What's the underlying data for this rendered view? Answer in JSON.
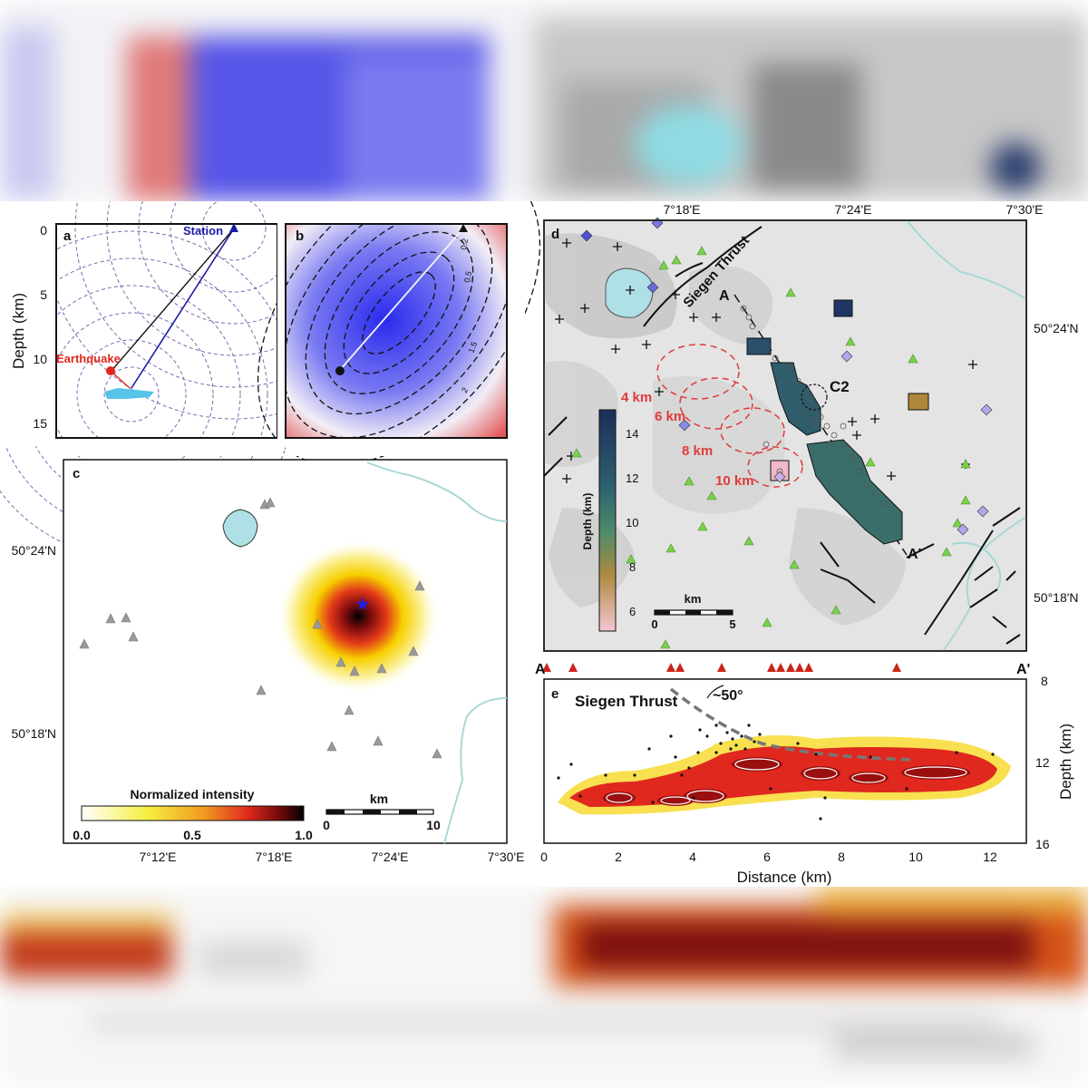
{
  "panels": {
    "a": {
      "letter": "a",
      "station_label": "Station",
      "earthquake_label": "Earthquake",
      "y_ticks": [
        "0",
        "5",
        "10",
        "15"
      ],
      "y_axis_title": "Depth (km)"
    },
    "b": {
      "letter": "b",
      "contour_labels": [
        "0.2",
        "0.5",
        "1.5",
        "2"
      ]
    },
    "c": {
      "letter": "c",
      "lat_ticks": [
        "50°24'N",
        "50°18'N"
      ],
      "lon_ticks": [
        "7°12'E",
        "7°18'E",
        "7°24'E",
        "7°30'E"
      ],
      "colorbar_title": "Normalized intensity",
      "colorbar_ticks": [
        "0.0",
        "0.5",
        "1.0"
      ],
      "scale_unit": "km",
      "scale_ticks": [
        "0",
        "10"
      ]
    },
    "d": {
      "letter": "d",
      "lon_ticks": [
        "7°18'E",
        "7°24'E",
        "7°30'E"
      ],
      "lat_ticks": [
        "50°24'N",
        "50°18'N"
      ],
      "fault_label": "Siegen Thrust",
      "profile_start": "A",
      "profile_end": "A'",
      "cluster_label": "C2",
      "depth_rings": [
        "4 km",
        "6 km",
        "8 km",
        "10 km"
      ],
      "colorbar_title": "Depth (km)",
      "colorbar_ticks": [
        "14",
        "12",
        "10",
        "8",
        "6"
      ],
      "scale_unit": "km",
      "scale_ticks": [
        "0",
        "5"
      ]
    },
    "e": {
      "letter": "e",
      "profile_start": "A",
      "profile_end": "A'",
      "fault_label": "Siegen Thrust",
      "dip_label": "~50°",
      "x_ticks": [
        "0",
        "2",
        "4",
        "6",
        "8",
        "10",
        "12"
      ],
      "x_axis_title": "Distance (km)",
      "y_ticks": [
        "8",
        "12",
        "16"
      ],
      "y_axis_title": "Depth (km)"
    }
  },
  "colors": {
    "station_line": "#1a1aa8",
    "earthquake": "#e0281e",
    "lake": "#aee0e6",
    "river": "#a8d8d8",
    "station_triangle": "#9a9a9a",
    "green_triangle": "#6fd14a",
    "red_triangle": "#cc2418",
    "depth_ring": "#e03a3a"
  }
}
